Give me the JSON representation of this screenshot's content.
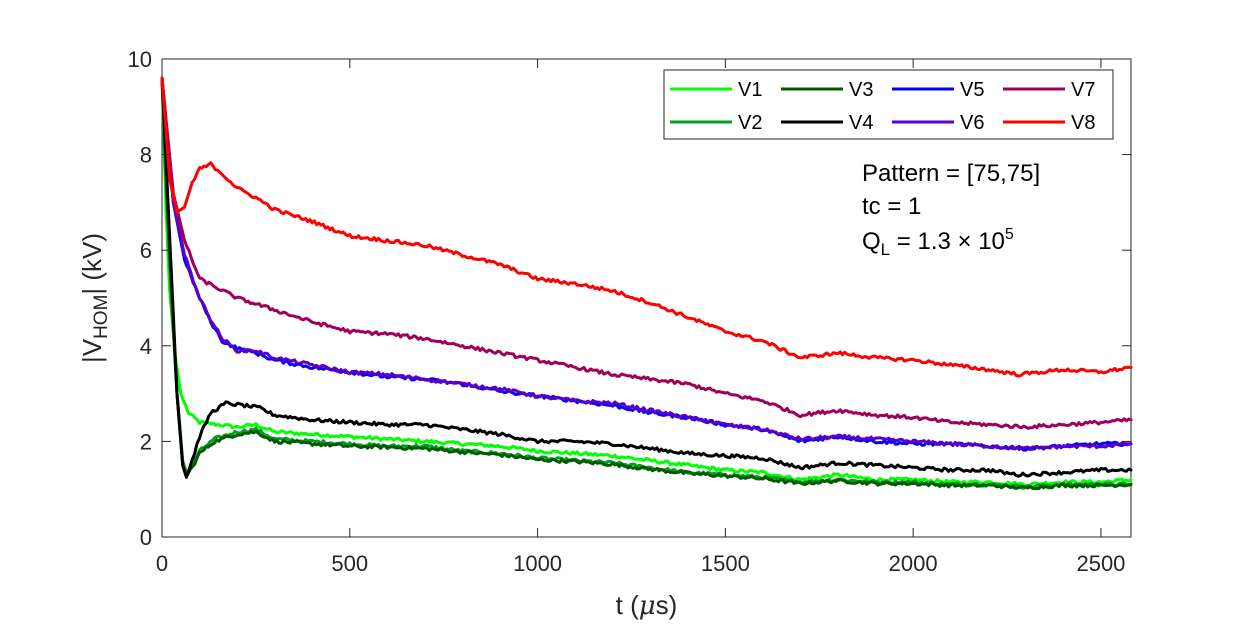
{
  "chart_data": {
    "type": "line",
    "xlabel_main": "t (",
    "xlabel_mu": "μ",
    "xlabel_end": "s)",
    "ylabel_pre": "|V",
    "ylabel_sub": "HOM",
    "ylabel_post": "| (kV)",
    "xlim": [
      0,
      2580
    ],
    "ylim": [
      0,
      10
    ],
    "x_ticks": [
      0,
      500,
      1000,
      1500,
      2000,
      2500
    ],
    "y_ticks": [
      0,
      2,
      4,
      6,
      8,
      10
    ],
    "grid": false,
    "legend_position": "top-right",
    "annotations": {
      "pattern": "Pattern = [75,75]",
      "tc": "tc  = 1",
      "ql_main": "Q",
      "ql_sub": "L",
      "ql_rest": " = 1.3 × 10",
      "ql_exp": "5"
    },
    "series": [
      {
        "name": "V1",
        "color": "#00ff00",
        "points": [
          [
            0,
            9.6
          ],
          [
            10,
            7.0
          ],
          [
            20,
            5.2
          ],
          [
            35,
            3.8
          ],
          [
            50,
            3.0
          ],
          [
            70,
            2.6
          ],
          [
            100,
            2.4
          ],
          [
            150,
            2.35
          ],
          [
            200,
            2.3
          ],
          [
            250,
            2.35
          ],
          [
            300,
            2.2
          ],
          [
            400,
            2.15
          ],
          [
            500,
            2.1
          ],
          [
            600,
            2.05
          ],
          [
            700,
            2.0
          ],
          [
            800,
            1.95
          ],
          [
            900,
            1.9
          ],
          [
            1000,
            1.8
          ],
          [
            1100,
            1.75
          ],
          [
            1200,
            1.7
          ],
          [
            1300,
            1.6
          ],
          [
            1400,
            1.5
          ],
          [
            1500,
            1.4
          ],
          [
            1600,
            1.35
          ],
          [
            1700,
            1.2
          ],
          [
            1800,
            1.3
          ],
          [
            1900,
            1.2
          ],
          [
            2000,
            1.2
          ],
          [
            2100,
            1.15
          ],
          [
            2200,
            1.15
          ],
          [
            2300,
            1.1
          ],
          [
            2400,
            1.15
          ],
          [
            2500,
            1.15
          ],
          [
            2580,
            1.2
          ]
        ]
      },
      {
        "name": "V2",
        "color": "#00a020",
        "points": [
          [
            0,
            9.6
          ],
          [
            10,
            7.5
          ],
          [
            25,
            5.0
          ],
          [
            40,
            3.0
          ],
          [
            55,
            1.6
          ],
          [
            65,
            1.35
          ],
          [
            80,
            1.5
          ],
          [
            100,
            1.8
          ],
          [
            140,
            2.05
          ],
          [
            200,
            2.2
          ],
          [
            250,
            2.25
          ],
          [
            300,
            2.05
          ],
          [
            400,
            2.0
          ],
          [
            500,
            1.95
          ],
          [
            600,
            1.9
          ],
          [
            700,
            1.9
          ],
          [
            800,
            1.8
          ],
          [
            900,
            1.75
          ],
          [
            1000,
            1.65
          ],
          [
            1100,
            1.6
          ],
          [
            1200,
            1.55
          ],
          [
            1300,
            1.45
          ],
          [
            1400,
            1.35
          ],
          [
            1500,
            1.3
          ],
          [
            1600,
            1.25
          ],
          [
            1700,
            1.15
          ],
          [
            1800,
            1.2
          ],
          [
            1900,
            1.15
          ],
          [
            2000,
            1.15
          ],
          [
            2100,
            1.1
          ],
          [
            2200,
            1.1
          ],
          [
            2300,
            1.05
          ],
          [
            2400,
            1.1
          ],
          [
            2500,
            1.1
          ],
          [
            2580,
            1.1
          ]
        ]
      },
      {
        "name": "V3",
        "color": "#005a00",
        "points": [
          [
            0,
            9.6
          ],
          [
            10,
            7.8
          ],
          [
            25,
            5.2
          ],
          [
            40,
            3.0
          ],
          [
            55,
            1.5
          ],
          [
            65,
            1.28
          ],
          [
            80,
            1.45
          ],
          [
            100,
            1.75
          ],
          [
            140,
            2.0
          ],
          [
            200,
            2.15
          ],
          [
            250,
            2.2
          ],
          [
            300,
            2.0
          ],
          [
            400,
            1.95
          ],
          [
            500,
            1.9
          ],
          [
            600,
            1.88
          ],
          [
            700,
            1.85
          ],
          [
            800,
            1.78
          ],
          [
            900,
            1.72
          ],
          [
            1000,
            1.62
          ],
          [
            1100,
            1.58
          ],
          [
            1200,
            1.52
          ],
          [
            1300,
            1.42
          ],
          [
            1400,
            1.33
          ],
          [
            1500,
            1.28
          ],
          [
            1600,
            1.22
          ],
          [
            1700,
            1.12
          ],
          [
            1800,
            1.18
          ],
          [
            1900,
            1.12
          ],
          [
            2000,
            1.12
          ],
          [
            2100,
            1.08
          ],
          [
            2200,
            1.08
          ],
          [
            2300,
            1.03
          ],
          [
            2400,
            1.08
          ],
          [
            2500,
            1.08
          ],
          [
            2580,
            1.1
          ]
        ]
      },
      {
        "name": "V4",
        "color": "#000000",
        "points": [
          [
            0,
            9.6
          ],
          [
            10,
            8.0
          ],
          [
            25,
            5.5
          ],
          [
            40,
            3.0
          ],
          [
            55,
            1.5
          ],
          [
            65,
            1.25
          ],
          [
            80,
            1.6
          ],
          [
            100,
            2.1
          ],
          [
            130,
            2.6
          ],
          [
            170,
            2.8
          ],
          [
            220,
            2.75
          ],
          [
            260,
            2.7
          ],
          [
            300,
            2.55
          ],
          [
            400,
            2.45
          ],
          [
            500,
            2.4
          ],
          [
            600,
            2.35
          ],
          [
            700,
            2.35
          ],
          [
            800,
            2.25
          ],
          [
            900,
            2.15
          ],
          [
            1000,
            2.0
          ],
          [
            1100,
            2.0
          ],
          [
            1200,
            1.95
          ],
          [
            1300,
            1.85
          ],
          [
            1400,
            1.75
          ],
          [
            1500,
            1.7
          ],
          [
            1600,
            1.65
          ],
          [
            1700,
            1.45
          ],
          [
            1800,
            1.55
          ],
          [
            1900,
            1.5
          ],
          [
            2000,
            1.45
          ],
          [
            2100,
            1.4
          ],
          [
            2200,
            1.4
          ],
          [
            2280,
            1.3
          ],
          [
            2400,
            1.35
          ],
          [
            2500,
            1.4
          ],
          [
            2580,
            1.4
          ]
        ]
      },
      {
        "name": "V5",
        "color": "#0000ff",
        "points": [
          [
            0,
            9.6
          ],
          [
            30,
            7.0
          ],
          [
            60,
            5.8
          ],
          [
            100,
            5.0
          ],
          [
            130,
            4.5
          ],
          [
            160,
            4.1
          ],
          [
            200,
            3.95
          ],
          [
            250,
            3.85
          ],
          [
            300,
            3.7
          ],
          [
            400,
            3.55
          ],
          [
            500,
            3.45
          ],
          [
            600,
            3.35
          ],
          [
            700,
            3.3
          ],
          [
            800,
            3.2
          ],
          [
            900,
            3.05
          ],
          [
            1000,
            2.95
          ],
          [
            1100,
            2.85
          ],
          [
            1200,
            2.75
          ],
          [
            1300,
            2.6
          ],
          [
            1400,
            2.5
          ],
          [
            1500,
            2.35
          ],
          [
            1600,
            2.25
          ],
          [
            1700,
            2.0
          ],
          [
            1800,
            2.1
          ],
          [
            1900,
            2.0
          ],
          [
            2000,
            1.95
          ],
          [
            2100,
            1.95
          ],
          [
            2200,
            1.9
          ],
          [
            2300,
            1.85
          ],
          [
            2400,
            1.9
          ],
          [
            2500,
            1.95
          ],
          [
            2580,
            1.95
          ]
        ]
      },
      {
        "name": "V6",
        "color": "#5a00c8",
        "points": [
          [
            0,
            9.6
          ],
          [
            30,
            7.0
          ],
          [
            60,
            5.9
          ],
          [
            100,
            5.0
          ],
          [
            130,
            4.55
          ],
          [
            160,
            4.15
          ],
          [
            200,
            3.9
          ],
          [
            250,
            3.9
          ],
          [
            300,
            3.75
          ],
          [
            400,
            3.6
          ],
          [
            500,
            3.45
          ],
          [
            600,
            3.4
          ],
          [
            700,
            3.3
          ],
          [
            800,
            3.2
          ],
          [
            900,
            3.1
          ],
          [
            1000,
            2.95
          ],
          [
            1100,
            2.85
          ],
          [
            1200,
            2.8
          ],
          [
            1300,
            2.65
          ],
          [
            1400,
            2.5
          ],
          [
            1500,
            2.35
          ],
          [
            1600,
            2.25
          ],
          [
            1700,
            2.05
          ],
          [
            1800,
            2.1
          ],
          [
            1900,
            2.05
          ],
          [
            2000,
            2.0
          ],
          [
            2100,
            1.95
          ],
          [
            2200,
            1.9
          ],
          [
            2300,
            1.85
          ],
          [
            2400,
            1.9
          ],
          [
            2500,
            1.9
          ],
          [
            2580,
            1.95
          ]
        ]
      },
      {
        "name": "V7",
        "color": "#a0005a",
        "points": [
          [
            0,
            9.6
          ],
          [
            30,
            7.2
          ],
          [
            60,
            6.2
          ],
          [
            100,
            5.4
          ],
          [
            150,
            5.2
          ],
          [
            200,
            5.0
          ],
          [
            300,
            4.75
          ],
          [
            400,
            4.5
          ],
          [
            500,
            4.3
          ],
          [
            600,
            4.25
          ],
          [
            700,
            4.15
          ],
          [
            800,
            4.0
          ],
          [
            900,
            3.85
          ],
          [
            1000,
            3.7
          ],
          [
            1100,
            3.55
          ],
          [
            1200,
            3.4
          ],
          [
            1300,
            3.3
          ],
          [
            1400,
            3.2
          ],
          [
            1500,
            3.0
          ],
          [
            1600,
            2.85
          ],
          [
            1700,
            2.55
          ],
          [
            1800,
            2.65
          ],
          [
            1900,
            2.55
          ],
          [
            2000,
            2.5
          ],
          [
            2100,
            2.4
          ],
          [
            2200,
            2.35
          ],
          [
            2300,
            2.3
          ],
          [
            2400,
            2.35
          ],
          [
            2500,
            2.4
          ],
          [
            2580,
            2.45
          ]
        ]
      },
      {
        "name": "V8",
        "color": "#ff0000",
        "points": [
          [
            0,
            9.6
          ],
          [
            20,
            7.5
          ],
          [
            40,
            6.8
          ],
          [
            60,
            6.9
          ],
          [
            80,
            7.4
          ],
          [
            100,
            7.7
          ],
          [
            130,
            7.8
          ],
          [
            160,
            7.6
          ],
          [
            200,
            7.3
          ],
          [
            250,
            7.1
          ],
          [
            300,
            6.85
          ],
          [
            400,
            6.6
          ],
          [
            500,
            6.3
          ],
          [
            600,
            6.2
          ],
          [
            700,
            6.1
          ],
          [
            800,
            5.9
          ],
          [
            900,
            5.7
          ],
          [
            1000,
            5.4
          ],
          [
            1100,
            5.3
          ],
          [
            1200,
            5.15
          ],
          [
            1300,
            4.9
          ],
          [
            1400,
            4.6
          ],
          [
            1500,
            4.3
          ],
          [
            1600,
            4.1
          ],
          [
            1700,
            3.75
          ],
          [
            1800,
            3.85
          ],
          [
            1900,
            3.75
          ],
          [
            2000,
            3.7
          ],
          [
            2100,
            3.6
          ],
          [
            2200,
            3.5
          ],
          [
            2280,
            3.4
          ],
          [
            2400,
            3.5
          ],
          [
            2500,
            3.45
          ],
          [
            2580,
            3.55
          ]
        ]
      }
    ]
  }
}
